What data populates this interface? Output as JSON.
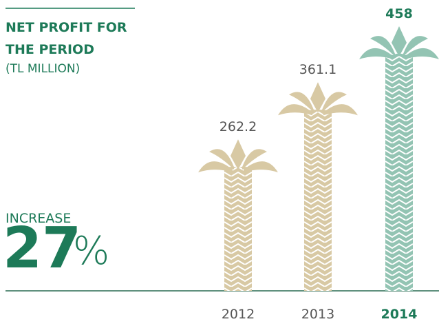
{
  "chart_data": {
    "type": "pictorial-bar",
    "title": "NET PROFIT FOR THE PERIOD",
    "subtitle": "(TL MILLION)",
    "annotation": {
      "text": "INCREASE",
      "number": "27",
      "unit": "%"
    },
    "categories": [
      "2012",
      "2013",
      "2014"
    ],
    "values": [
      262.2,
      361.1,
      458
    ],
    "colors": [
      "#d8c9a4",
      "#d8c9a4",
      "#93c4b3"
    ],
    "highlight_index": 2,
    "text_color": "#1d7a58"
  }
}
